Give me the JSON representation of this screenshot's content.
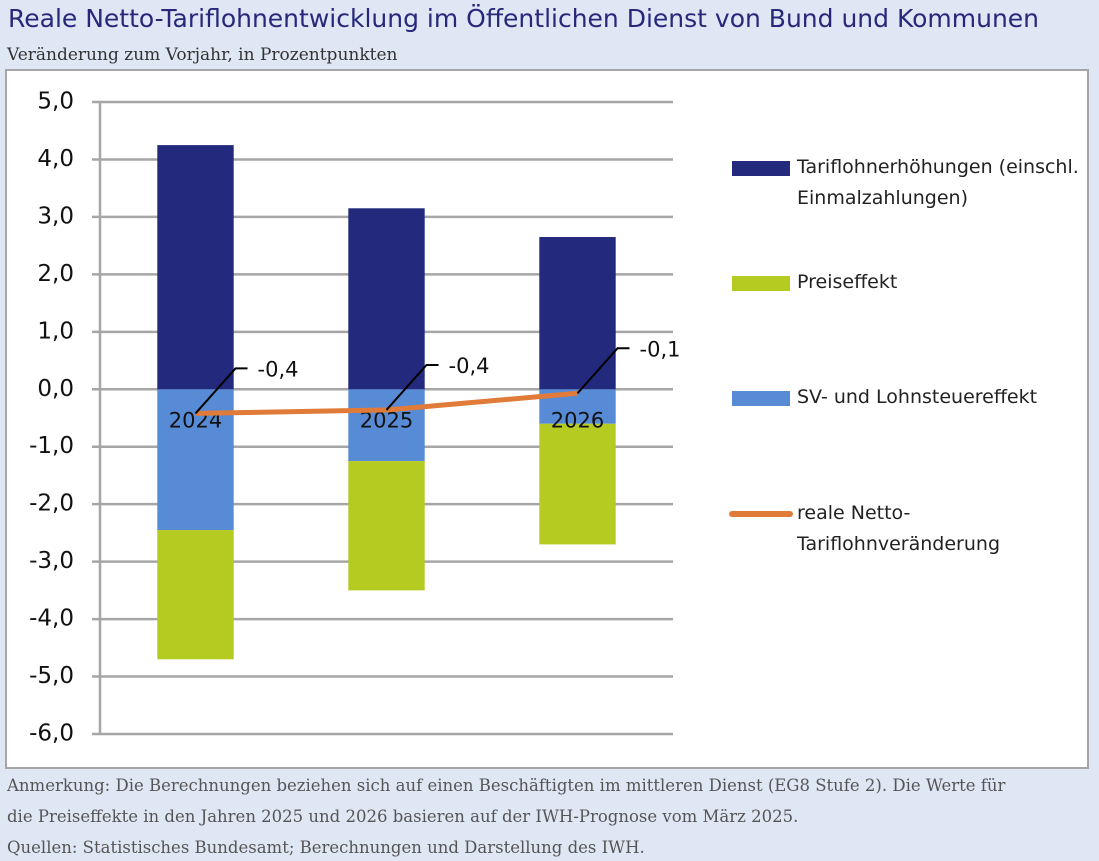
{
  "chart_data": {
    "type": "bar",
    "title": "Reale Netto-Tariflohnentwicklung im Öffentlichen Dienst von Bund und Kommunen",
    "subtitle": "Veränderung zum Vorjahr, in Prozentpunkten",
    "categories": [
      "2024",
      "2025",
      "2026"
    ],
    "series": [
      {
        "name": "Tariflohnerhöhungen (einschl. Einmalzahlungen)",
        "color": "#232a7e",
        "values": [
          4.25,
          3.15,
          2.65
        ]
      },
      {
        "name": "Preiseffekt",
        "color": "#b5cb22",
        "values": [
          -2.25,
          -2.25,
          -2.1
        ]
      },
      {
        "name": "SV- und Lohnsteuereffekt",
        "color": "#578bd6",
        "values": [
          -2.45,
          -1.25,
          -0.6
        ]
      },
      {
        "name": "reale Netto-Tariflohnveränderung",
        "color": "#e07b39",
        "type": "line",
        "values": [
          -0.42,
          -0.36,
          -0.07
        ],
        "value_labels": [
          "-0,4",
          "-0,4",
          "-0,1"
        ]
      }
    ],
    "ylim": [
      -6,
      5
    ],
    "yticks": [
      {
        "value": 5,
        "label": "5,0"
      },
      {
        "value": 4,
        "label": "4,0"
      },
      {
        "value": 3,
        "label": "3,0"
      },
      {
        "value": 2,
        "label": "2,0"
      },
      {
        "value": 1,
        "label": "1,0"
      },
      {
        "value": 0,
        "label": "0,0"
      },
      {
        "value": -1,
        "label": "-1,0"
      },
      {
        "value": -2,
        "label": "-2,0"
      },
      {
        "value": -3,
        "label": "-3,0"
      },
      {
        "value": -4,
        "label": "-4,0"
      },
      {
        "value": -5,
        "label": "-5,0"
      },
      {
        "value": -6,
        "label": "-6,0"
      }
    ],
    "grid": true,
    "notes": [
      "Anmerkung: Die Berechnungen beziehen sich auf einen Beschäftigten im mittleren Dienst (EG8 Stufe 2). Die Werte für",
      "die Preiseffekte in den Jahren 2025 und 2026 basieren auf der IWH-Prognose vom März 2025.",
      "Quellen: Statistisches Bundesamt; Berechnungen und Darstellung des IWH."
    ]
  }
}
